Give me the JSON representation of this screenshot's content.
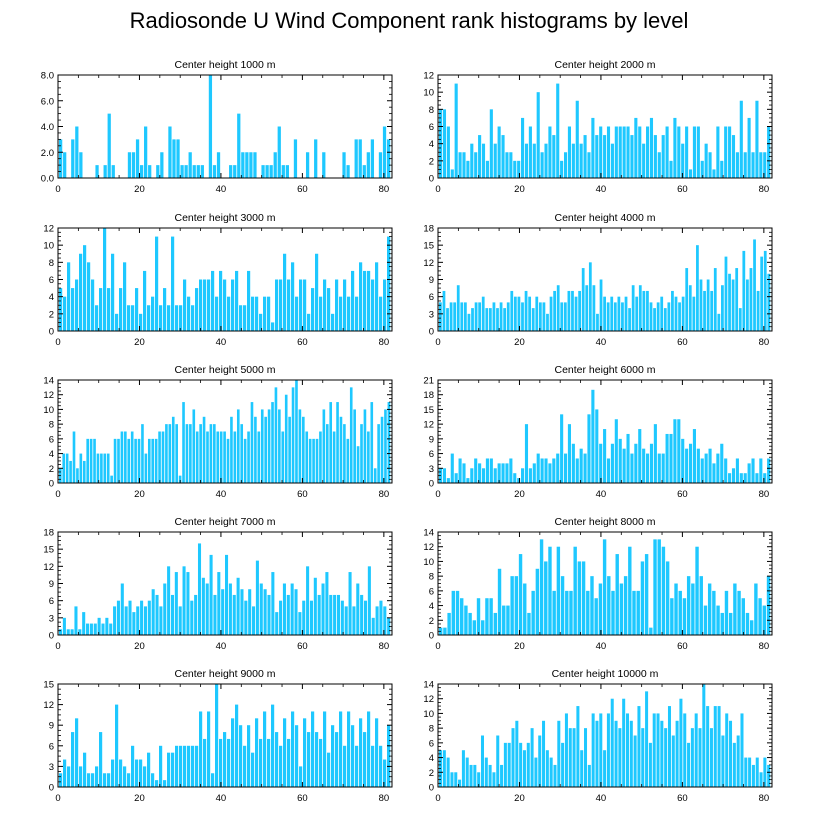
{
  "title": "Radiosonde U Wind Component rank histograms by level",
  "bar_color": "#1ec8ff",
  "chart_data": [
    {
      "type": "bar",
      "title": "Center height 1000 m",
      "x_start": 0,
      "xticks": [
        0,
        20,
        40,
        60,
        80
      ],
      "xlim": [
        0,
        82
      ],
      "ylim": [
        0,
        8
      ],
      "yticks": [
        "0.0",
        "2.0",
        "4.0",
        "6.0",
        "8.0"
      ],
      "values": [
        3,
        2,
        0,
        3,
        4,
        2,
        0,
        0,
        0,
        1,
        0,
        1,
        5,
        1,
        0,
        0,
        0,
        2,
        2,
        3,
        1,
        4,
        1,
        0,
        1,
        2,
        0,
        4,
        3,
        3,
        1,
        1,
        2,
        1,
        1,
        1,
        0,
        8,
        1,
        2,
        0,
        0,
        1,
        1,
        5,
        2,
        2,
        2,
        2,
        0,
        1,
        1,
        1,
        2,
        4,
        1,
        1,
        0,
        3,
        0,
        0,
        2,
        0,
        3,
        0,
        2,
        0,
        0,
        0,
        0,
        2,
        1,
        0,
        3,
        3,
        1,
        2,
        3,
        0,
        2,
        4,
        3
      ]
    },
    {
      "type": "bar",
      "title": "Center height 2000 m",
      "x_start": 0,
      "xticks": [
        0,
        20,
        40,
        60,
        80
      ],
      "xlim": [
        0,
        82
      ],
      "ylim": [
        0,
        12
      ],
      "yticks": [
        "0",
        "2",
        "4",
        "6",
        "8",
        "10",
        "12"
      ],
      "values": [
        8,
        8,
        6,
        1,
        11,
        3,
        3,
        2,
        4,
        3,
        5,
        4,
        2,
        8,
        4,
        6,
        5,
        3,
        3,
        2,
        2,
        7,
        4,
        6,
        4,
        10,
        3,
        4,
        6,
        5,
        11,
        2,
        3,
        6,
        4,
        9,
        4,
        5,
        3,
        7,
        5,
        6,
        5,
        6,
        4,
        6,
        6,
        6,
        6,
        5,
        7,
        6,
        4,
        6,
        7,
        5,
        3,
        5,
        6,
        2,
        7,
        6,
        4,
        6,
        1,
        6,
        6,
        2,
        4,
        3,
        1,
        6,
        2,
        6,
        6,
        5,
        3,
        9,
        3,
        7,
        3,
        9,
        3,
        3,
        6
      ]
    },
    {
      "type": "bar",
      "title": "Center height 3000 m",
      "x_start": 0,
      "xticks": [
        0,
        20,
        40,
        60,
        80
      ],
      "xlim": [
        0,
        82
      ],
      "ylim": [
        0,
        12
      ],
      "yticks": [
        "0",
        "2",
        "4",
        "6",
        "8",
        "10",
        "12"
      ],
      "values": [
        5,
        4,
        8,
        5,
        6,
        9,
        10,
        8,
        6,
        3,
        5,
        12,
        5,
        9,
        2,
        5,
        8,
        3,
        3,
        5,
        2,
        7,
        3,
        4,
        11,
        3,
        5,
        3,
        11,
        3,
        3,
        6,
        4,
        3,
        5,
        6,
        6,
        6,
        7,
        4,
        7,
        6,
        4,
        6,
        7,
        3,
        3,
        7,
        4,
        4,
        2,
        4,
        4,
        1,
        6,
        6,
        9,
        6,
        8,
        4,
        6,
        6,
        2,
        5,
        9,
        4,
        6,
        5,
        2,
        6,
        4,
        6,
        4,
        7,
        4,
        8,
        7,
        7,
        6,
        8,
        4,
        6,
        11
      ]
    },
    {
      "type": "bar",
      "title": "Center height 4000 m",
      "x_start": 0,
      "xticks": [
        0,
        20,
        40,
        60,
        80
      ],
      "xlim": [
        0,
        82
      ],
      "ylim": [
        0,
        18
      ],
      "yticks": [
        "0",
        "3",
        "6",
        "9",
        "12",
        "15",
        "18"
      ],
      "values": [
        5,
        7,
        4,
        5,
        5,
        8,
        5,
        5,
        3,
        4,
        5,
        5,
        6,
        4,
        4,
        5,
        4,
        5,
        4,
        5,
        7,
        6,
        6,
        5,
        7,
        6,
        4,
        6,
        5,
        5,
        3,
        6,
        7,
        8,
        5,
        5,
        7,
        7,
        6,
        7,
        11,
        8,
        12,
        8,
        3,
        9,
        6,
        5,
        6,
        5,
        6,
        5,
        6,
        4,
        8,
        6,
        8,
        7,
        7,
        5,
        4,
        5,
        6,
        4,
        5,
        7,
        6,
        5,
        6,
        11,
        8,
        6,
        15,
        9,
        7,
        9,
        7,
        11,
        3,
        8,
        13,
        10,
        9,
        11,
        4,
        14,
        9,
        11,
        16,
        7,
        13,
        14,
        10
      ]
    },
    {
      "type": "bar",
      "title": "Center height 5000 m",
      "x_start": 0,
      "xticks": [
        0,
        20,
        40,
        60,
        80
      ],
      "xlim": [
        0,
        82
      ],
      "ylim": [
        0,
        14
      ],
      "yticks": [
        "0",
        "2",
        "4",
        "6",
        "8",
        "10",
        "12",
        "14"
      ],
      "values": [
        2,
        4,
        4,
        3,
        7,
        2,
        4,
        3,
        6,
        6,
        6,
        4,
        4,
        4,
        4,
        1,
        6,
        6,
        7,
        7,
        6,
        7,
        6,
        6,
        8,
        4,
        6,
        6,
        6,
        7,
        7,
        8,
        8,
        9,
        8,
        1,
        11,
        8,
        8,
        10,
        7,
        8,
        9,
        7,
        8,
        8,
        7,
        7,
        7,
        6,
        9,
        7,
        10,
        8,
        6,
        7,
        11,
        9,
        7,
        10,
        9,
        10,
        11,
        13,
        10,
        7,
        12,
        9,
        13,
        14,
        10,
        9,
        7,
        6,
        6,
        6,
        7,
        10,
        8,
        11,
        7,
        11,
        9,
        8,
        6,
        13,
        10,
        5,
        8,
        10,
        7,
        11,
        2,
        8,
        9,
        10,
        11
      ]
    },
    {
      "type": "bar",
      "title": "Center height 6000 m",
      "x_start": 0,
      "xticks": [
        0,
        20,
        40,
        60,
        80
      ],
      "xlim": [
        0,
        82
      ],
      "ylim": [
        0,
        21
      ],
      "yticks": [
        "0",
        "3",
        "6",
        "9",
        "12",
        "15",
        "18",
        "21"
      ],
      "values": [
        3,
        3,
        1,
        6,
        2,
        5,
        4,
        1,
        3,
        5,
        4,
        3,
        5,
        5,
        3,
        4,
        4,
        4,
        5,
        2,
        1,
        3,
        12,
        3,
        4,
        6,
        5,
        5,
        4,
        5,
        6,
        14,
        6,
        12,
        8,
        5,
        7,
        6,
        14,
        19,
        15,
        8,
        11,
        5,
        8,
        13,
        9,
        7,
        10,
        6,
        8,
        11,
        7,
        6,
        8,
        12,
        6,
        6,
        10,
        10,
        13,
        13,
        9,
        7,
        8,
        11,
        7,
        5,
        6,
        7,
        4,
        6,
        8,
        5,
        2,
        3,
        5,
        2,
        2,
        4,
        5,
        2,
        5,
        2,
        5
      ]
    },
    {
      "type": "bar",
      "title": "Center height 7000 m",
      "x_start": 0,
      "xticks": [
        0,
        20,
        40,
        60,
        80
      ],
      "xlim": [
        0,
        82
      ],
      "ylim": [
        0,
        18
      ],
      "yticks": [
        "0",
        "3",
        "6",
        "9",
        "12",
        "15",
        "18"
      ],
      "values": [
        1,
        3,
        1,
        1,
        5,
        1,
        4,
        2,
        2,
        2,
        3,
        2,
        3,
        2,
        5,
        6,
        9,
        5,
        6,
        4,
        5,
        6,
        5,
        6,
        8,
        7,
        5,
        9,
        12,
        7,
        11,
        5,
        12,
        11,
        6,
        7,
        16,
        10,
        9,
        14,
        7,
        11,
        8,
        14,
        9,
        7,
        10,
        8,
        6,
        8,
        5,
        13,
        9,
        8,
        7,
        11,
        4,
        6,
        9,
        7,
        9,
        8,
        4,
        6,
        12,
        6,
        10,
        7,
        9,
        11,
        7,
        7,
        7,
        6,
        5,
        11,
        5,
        9,
        7,
        6,
        12,
        3,
        5,
        6,
        5,
        3
      ]
    },
    {
      "type": "bar",
      "title": "Center height 8000 m",
      "x_start": 0,
      "xticks": [
        0,
        20,
        40,
        60,
        80
      ],
      "xlim": [
        0,
        82
      ],
      "ylim": [
        0,
        14
      ],
      "yticks": [
        "0",
        "2",
        "4",
        "6",
        "8",
        "10",
        "12",
        "14"
      ],
      "values": [
        1,
        1,
        3,
        6,
        6,
        5,
        4,
        3,
        2,
        5,
        2,
        5,
        5,
        3,
        9,
        4,
        4,
        8,
        8,
        11,
        7,
        3,
        6,
        9,
        13,
        10,
        12,
        6,
        12,
        8,
        6,
        6,
        12,
        10,
        10,
        6,
        8,
        5,
        7,
        13,
        8,
        6,
        11,
        7,
        8,
        12,
        6,
        6,
        10,
        11,
        1,
        13,
        13,
        12,
        10,
        5,
        7,
        6,
        5,
        8,
        7,
        12,
        8,
        4,
        7,
        6,
        4,
        3,
        6,
        3,
        7,
        6,
        5,
        3,
        2,
        7,
        5,
        4,
        8
      ]
    },
    {
      "type": "bar",
      "title": "Center height 9000 m",
      "x_start": 0,
      "xticks": [
        0,
        20,
        40,
        60,
        80
      ],
      "xlim": [
        0,
        82
      ],
      "ylim": [
        0,
        15
      ],
      "yticks": [
        "0",
        "3",
        "6",
        "9",
        "12",
        "15"
      ],
      "values": [
        2,
        4,
        3,
        8,
        10,
        3,
        5,
        2,
        2,
        3,
        8,
        2,
        2,
        4,
        12,
        4,
        3,
        2,
        6,
        4,
        4,
        3,
        5,
        2,
        1,
        6,
        1,
        5,
        5,
        6,
        6,
        6,
        6,
        6,
        6,
        11,
        7,
        11,
        2,
        15,
        7,
        8,
        7,
        10,
        12,
        9,
        6,
        9,
        5,
        10,
        7,
        11,
        7,
        12,
        8,
        6,
        10,
        7,
        11,
        9,
        3,
        10,
        8,
        11,
        8,
        7,
        11,
        5,
        9,
        8,
        11,
        6,
        11,
        9,
        6,
        10,
        8,
        11,
        6,
        10,
        6,
        4,
        9
      ]
    },
    {
      "type": "bar",
      "title": "Center height 10000 m",
      "x_start": 0,
      "xticks": [
        0,
        20,
        40,
        60,
        80
      ],
      "xlim": [
        0,
        82
      ],
      "ylim": [
        0,
        14
      ],
      "yticks": [
        "0",
        "2",
        "4",
        "6",
        "8",
        "10",
        "12",
        "14"
      ],
      "values": [
        5,
        5,
        4,
        2,
        2,
        1,
        5,
        4,
        3,
        3,
        2,
        7,
        4,
        3,
        2,
        7,
        3,
        6,
        6,
        8,
        9,
        6,
        5,
        6,
        8,
        4,
        7,
        9,
        5,
        4,
        3,
        9,
        6,
        10,
        8,
        8,
        11,
        5,
        8,
        3,
        10,
        9,
        10,
        5,
        10,
        12,
        9,
        8,
        12,
        10,
        9,
        7,
        11,
        8,
        13,
        6,
        10,
        10,
        9,
        8,
        11,
        7,
        9,
        12,
        10,
        6,
        8,
        10,
        8,
        14,
        11,
        8,
        11,
        11,
        7,
        10,
        9,
        6,
        7,
        10,
        4,
        4,
        3,
        4,
        2,
        4,
        3
      ]
    }
  ]
}
